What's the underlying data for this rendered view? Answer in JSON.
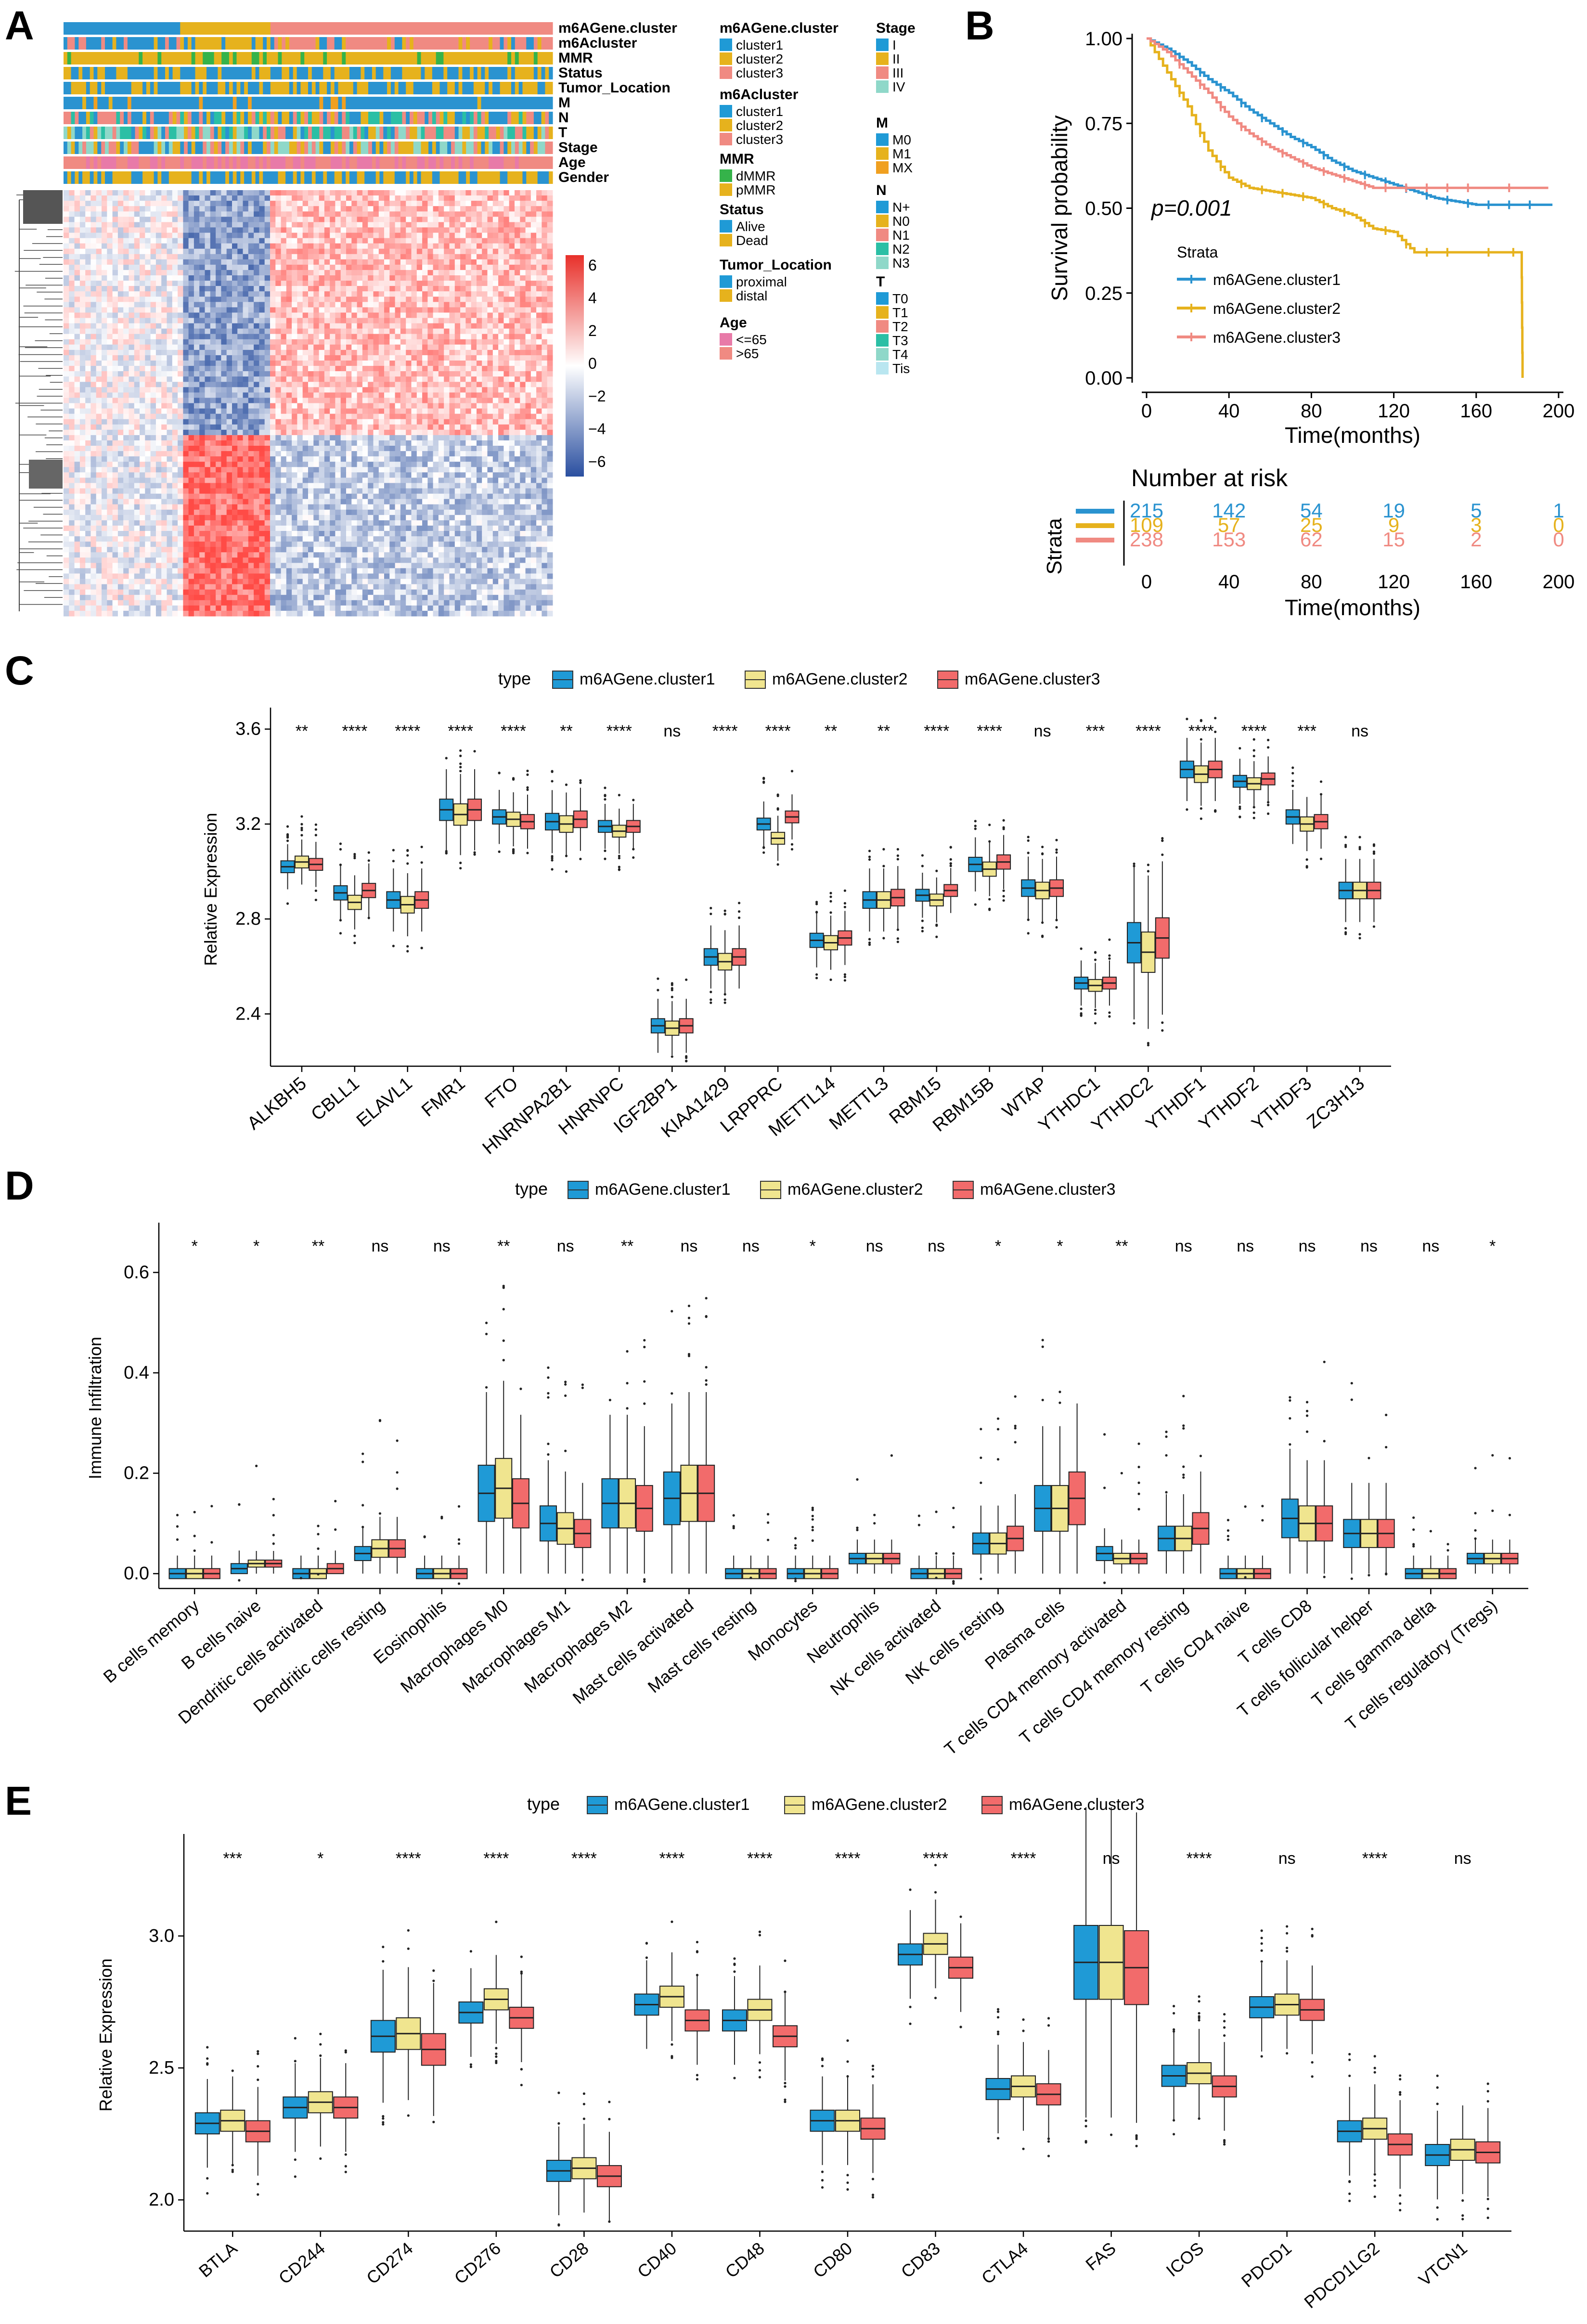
{
  "colors": {
    "c1": "#1f9ad6",
    "c2": "#f0e58f",
    "c3": "#f26b6b",
    "km1": "#2a93d0",
    "km2": "#e6b21d",
    "km3": "#f08a82",
    "heat_high": "#e8302a",
    "heat_low": "#2a4fa0"
  },
  "panels": {
    "A": {
      "label": "A",
      "track_names": [
        "m6AGene.cluster",
        "m6Acluster",
        "MMR",
        "Status",
        "Tumor_Location",
        "M",
        "N",
        "T",
        "Stage",
        "Age",
        "Gender"
      ],
      "colorbar_ticks": [
        "6",
        "4",
        "2",
        "0",
        "−2",
        "−4",
        "−6"
      ],
      "legends": [
        {
          "title": "m6AGene.cluster",
          "items": [
            {
              "label": "cluster1",
              "color": "#1f9ad6"
            },
            {
              "label": "cluster2",
              "color": "#e6b21d"
            },
            {
              "label": "cluster3",
              "color": "#f08a82"
            }
          ]
        },
        {
          "title": "m6Acluster",
          "items": [
            {
              "label": "cluster1",
              "color": "#1f9ad6"
            },
            {
              "label": "cluster2",
              "color": "#e6b21d"
            },
            {
              "label": "cluster3",
              "color": "#f08a82"
            }
          ]
        },
        {
          "title": "MMR",
          "items": [
            {
              "label": "dMMR",
              "color": "#35b34a"
            },
            {
              "label": "pMMR",
              "color": "#e6b21d"
            }
          ]
        },
        {
          "title": "Status",
          "items": [
            {
              "label": "Alive",
              "color": "#1f9ad6"
            },
            {
              "label": "Dead",
              "color": "#e6b21d"
            }
          ]
        },
        {
          "title": "Tumor_Location",
          "items": [
            {
              "label": "proximal",
              "color": "#1f9ad6"
            },
            {
              "label": "distal",
              "color": "#e6b21d"
            }
          ]
        },
        {
          "title": "Age",
          "items": [
            {
              "label": "<=65",
              "color": "#e87aa8"
            },
            {
              "label": ">65",
              "color": "#f08a82"
            }
          ]
        },
        {
          "title": "Stage",
          "items": [
            {
              "label": "I",
              "color": "#1f9ad6"
            },
            {
              "label": "II",
              "color": "#e6b21d"
            },
            {
              "label": "III",
              "color": "#f08a82"
            },
            {
              "label": "IV",
              "color": "#8fd8c9"
            }
          ]
        },
        {
          "title": "M",
          "items": [
            {
              "label": "M0",
              "color": "#1f9ad6"
            },
            {
              "label": "M1",
              "color": "#e6b21d"
            },
            {
              "label": "MX",
              "color": "#f0a020"
            }
          ]
        },
        {
          "title": "N",
          "items": [
            {
              "label": "N+",
              "color": "#1f9ad6"
            },
            {
              "label": "N0",
              "color": "#e6b21d"
            },
            {
              "label": "N1",
              "color": "#f08a82"
            },
            {
              "label": "N2",
              "color": "#2bbfa5"
            },
            {
              "label": "N3",
              "color": "#8fd8c9"
            }
          ]
        },
        {
          "title": "T",
          "items": [
            {
              "label": "T0",
              "color": "#1f9ad6"
            },
            {
              "label": "T1",
              "color": "#e6b21d"
            },
            {
              "label": "T2",
              "color": "#f08a82"
            },
            {
              "label": "T3",
              "color": "#2bbfa5"
            },
            {
              "label": "T4",
              "color": "#8fd8c9"
            },
            {
              "label": "Tis",
              "color": "#b9e6f0"
            }
          ]
        }
      ]
    },
    "B": {
      "label": "B",
      "pvalue": "p=0.001",
      "legend_title": "Strata",
      "risk_title": "Number at risk",
      "risk_ylabel": "Strata"
    },
    "C": {
      "label": "C",
      "legend_title": "type"
    },
    "D": {
      "label": "D",
      "legend_title": "type"
    },
    "E": {
      "label": "E",
      "legend_title": "type"
    }
  },
  "chart_data": [
    {
      "id": "B-km",
      "type": "line",
      "title": "",
      "xlabel": "Time(months)",
      "ylabel": "Survival probability",
      "xlim": [
        0,
        200
      ],
      "ylim": [
        0,
        1
      ],
      "x_ticks": [
        0,
        40,
        80,
        120,
        160,
        200
      ],
      "y_ticks": [
        0.0,
        0.25,
        0.5,
        0.75,
        1.0
      ],
      "y_tick_labels": [
        "0.00",
        "0.25",
        "0.50",
        "0.75",
        "1.00"
      ],
      "series": [
        {
          "name": "m6AGene.cluster1",
          "color": "#2a93d0",
          "t": [
            0,
            10,
            20,
            30,
            40,
            50,
            60,
            70,
            80,
            90,
            100,
            110,
            120,
            130,
            140,
            150,
            160,
            170,
            180,
            190,
            197
          ],
          "s": [
            1.0,
            0.97,
            0.93,
            0.88,
            0.84,
            0.79,
            0.75,
            0.71,
            0.68,
            0.64,
            0.61,
            0.59,
            0.57,
            0.55,
            0.53,
            0.52,
            0.51,
            0.51,
            0.51,
            0.51,
            0.51
          ]
        },
        {
          "name": "m6AGene.cluster2",
          "color": "#e6b21d",
          "t": [
            0,
            10,
            20,
            30,
            40,
            50,
            60,
            70,
            80,
            90,
            100,
            110,
            120,
            130,
            140,
            150,
            170,
            182,
            182.5
          ],
          "s": [
            1.0,
            0.9,
            0.8,
            0.67,
            0.59,
            0.56,
            0.55,
            0.54,
            0.53,
            0.5,
            0.48,
            0.44,
            0.43,
            0.37,
            0.37,
            0.37,
            0.37,
            0.37,
            0.0
          ]
        },
        {
          "name": "m6AGene.cluster3",
          "color": "#f08a82",
          "t": [
            0,
            10,
            20,
            30,
            40,
            50,
            60,
            70,
            80,
            90,
            100,
            110,
            120,
            130,
            140,
            150,
            160,
            180,
            195
          ],
          "s": [
            1.0,
            0.96,
            0.9,
            0.84,
            0.77,
            0.72,
            0.68,
            0.65,
            0.62,
            0.6,
            0.58,
            0.56,
            0.56,
            0.56,
            0.56,
            0.56,
            0.56,
            0.56,
            0.56
          ]
        }
      ],
      "risk_table": {
        "times": [
          0,
          40,
          80,
          120,
          160,
          200
        ],
        "rows": [
          {
            "name": "m6AGene.cluster1",
            "color": "#2a93d0",
            "counts": [
              "215",
              "142",
              "54",
              "19",
              "5",
              "1"
            ]
          },
          {
            "name": "m6AGene.cluster2",
            "color": "#e6b21d",
            "counts": [
              "109",
              "57",
              "25",
              "9",
              "3",
              "0"
            ]
          },
          {
            "name": "m6AGene.cluster3",
            "color": "#f08a82",
            "counts": [
              "238",
              "153",
              "62",
              "15",
              "2",
              "0"
            ]
          }
        ]
      }
    },
    {
      "id": "C-box",
      "type": "box",
      "ylabel": "Relative Expression",
      "ylim": [
        2.2,
        3.65
      ],
      "y_ticks": [
        2.4,
        2.8,
        3.2,
        3.6
      ],
      "legend": [
        "m6AGene.cluster1",
        "m6AGene.cluster2",
        "m6AGene.cluster3"
      ],
      "categories": [
        "ALKBH5",
        "CBLL1",
        "ELAVL1",
        "FMR1",
        "FTO",
        "HNRNPA2B1",
        "HNRNPC",
        "IGF2BP1",
        "KIAA1429",
        "LRPPRC",
        "METTL14",
        "METTL3",
        "RBM15",
        "RBM15B",
        "WTAP",
        "YTHDC1",
        "YTHDC2",
        "YTHDF1",
        "YTHDF2",
        "YTHDF3",
        "ZC3H13"
      ],
      "significance": [
        "**",
        "****",
        "****",
        "****",
        "****",
        "**",
        "****",
        "ns",
        "****",
        "****",
        "**",
        "**",
        "****",
        "****",
        "ns",
        "***",
        "****",
        "****",
        "****",
        "***",
        "ns"
      ],
      "medians": [
        [
          3.02,
          3.04,
          3.03
        ],
        [
          2.91,
          2.87,
          2.92
        ],
        [
          2.88,
          2.86,
          2.88
        ],
        [
          3.26,
          3.24,
          3.26
        ],
        [
          3.23,
          3.22,
          3.21
        ],
        [
          3.21,
          3.2,
          3.22
        ],
        [
          3.19,
          3.17,
          3.19
        ],
        [
          2.35,
          2.34,
          2.35
        ],
        [
          2.64,
          2.62,
          2.64
        ],
        [
          3.2,
          3.14,
          3.23
        ],
        [
          2.71,
          2.7,
          2.72
        ],
        [
          2.88,
          2.88,
          2.89
        ],
        [
          2.9,
          2.88,
          2.92
        ],
        [
          3.03,
          3.01,
          3.04
        ],
        [
          2.93,
          2.92,
          2.93
        ],
        [
          2.53,
          2.52,
          2.53
        ],
        [
          2.7,
          2.66,
          2.72
        ],
        [
          3.43,
          3.41,
          3.43
        ],
        [
          3.38,
          3.37,
          3.39
        ],
        [
          3.23,
          3.2,
          3.21
        ],
        [
          2.92,
          2.92,
          2.92
        ]
      ]
    },
    {
      "id": "D-box",
      "type": "box",
      "ylabel": "Immune Infiltration",
      "ylim": [
        -0.02,
        0.68
      ],
      "y_ticks": [
        0.0,
        0.2,
        0.4,
        0.6
      ],
      "y_tick_labels": [
        "0.0",
        "0.2",
        "0.4",
        "0.6"
      ],
      "legend": [
        "m6AGene.cluster1",
        "m6AGene.cluster2",
        "m6AGene.cluster3"
      ],
      "categories": [
        "B cells memory",
        "B cells naive",
        "Dendritic cells activated",
        "Dendritic cells resting",
        "Eosinophils",
        "Macrophages M0",
        "Macrophages M1",
        "Macrophages M2",
        "Mast cells activated",
        "Mast cells resting",
        "Monocytes",
        "Neutrophils",
        "NK cells activated",
        "NK cells resting",
        "Plasma cells",
        "T cells CD4 memory activated",
        "T cells CD4 memory resting",
        "T cells CD4 naive",
        "T cells CD8",
        "T cells follicular helper",
        "T cells gamma delta",
        "T cells regulatory (Tregs)"
      ],
      "significance": [
        "*",
        "*",
        "**",
        "ns",
        "ns",
        "**",
        "ns",
        "**",
        "ns",
        "ns",
        "*",
        "ns",
        "ns",
        "*",
        "*",
        "**",
        "ns",
        "ns",
        "ns",
        "ns",
        "ns",
        "*"
      ],
      "medians": [
        [
          0.0,
          0.0,
          0.0
        ],
        [
          0.01,
          0.02,
          0.02
        ],
        [
          0.0,
          0.0,
          0.01
        ],
        [
          0.04,
          0.05,
          0.05
        ],
        [
          0.0,
          0.0,
          0.0
        ],
        [
          0.16,
          0.17,
          0.14
        ],
        [
          0.1,
          0.09,
          0.08
        ],
        [
          0.14,
          0.14,
          0.13
        ],
        [
          0.15,
          0.16,
          0.16
        ],
        [
          0.0,
          0.0,
          0.0
        ],
        [
          0.0,
          0.0,
          0.0
        ],
        [
          0.03,
          0.03,
          0.03
        ],
        [
          0.0,
          0.0,
          0.0
        ],
        [
          0.06,
          0.06,
          0.07
        ],
        [
          0.13,
          0.13,
          0.15
        ],
        [
          0.04,
          0.03,
          0.03
        ],
        [
          0.07,
          0.07,
          0.09
        ],
        [
          0.0,
          0.0,
          0.0
        ],
        [
          0.11,
          0.1,
          0.1
        ],
        [
          0.08,
          0.08,
          0.08
        ],
        [
          0.0,
          0.0,
          0.0
        ],
        [
          0.03,
          0.03,
          0.03
        ]
      ]
    },
    {
      "id": "E-box",
      "type": "box",
      "ylabel": "Relative Expression",
      "ylim": [
        1.9,
        3.35
      ],
      "y_ticks": [
        2.0,
        2.5,
        3.0
      ],
      "y_tick_labels": [
        "2.0",
        "2.5",
        "3.0"
      ],
      "legend": [
        "m6AGene.cluster1",
        "m6AGene.cluster2",
        "m6AGene.cluster3"
      ],
      "categories": [
        "BTLA",
        "CD244",
        "CD274",
        "CD276",
        "CD28",
        "CD40",
        "CD48",
        "CD80",
        "CD83",
        "CTLA4",
        "FAS",
        "ICOS",
        "PDCD1",
        "PDCD1LG2",
        "VTCN1"
      ],
      "significance": [
        "***",
        "*",
        "****",
        "****",
        "****",
        "****",
        "****",
        "****",
        "****",
        "****",
        "ns",
        "****",
        "ns",
        "****",
        "ns"
      ],
      "medians": [
        [
          2.29,
          2.3,
          2.26
        ],
        [
          2.35,
          2.37,
          2.35
        ],
        [
          2.62,
          2.63,
          2.57
        ],
        [
          2.71,
          2.76,
          2.69
        ],
        [
          2.11,
          2.12,
          2.09
        ],
        [
          2.74,
          2.77,
          2.68
        ],
        [
          2.68,
          2.72,
          2.62
        ],
        [
          2.3,
          2.3,
          2.27
        ],
        [
          2.93,
          2.97,
          2.88
        ],
        [
          2.42,
          2.43,
          2.4
        ],
        [
          2.9,
          2.9,
          2.88
        ],
        [
          2.47,
          2.48,
          2.43
        ],
        [
          2.73,
          2.74,
          2.72
        ],
        [
          2.26,
          2.27,
          2.21
        ],
        [
          2.17,
          2.19,
          2.18
        ]
      ]
    }
  ]
}
